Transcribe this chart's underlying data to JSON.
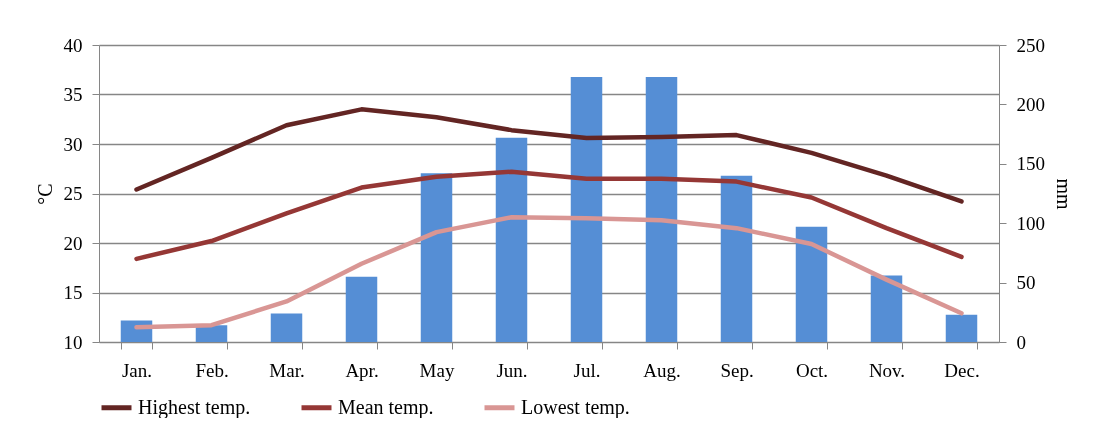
{
  "chart_data": {
    "type": "line",
    "categories": [
      "Jan.",
      "Feb.",
      "Mar.",
      "Apr.",
      "May",
      "Jun.",
      "Jul.",
      "Aug.",
      "Sep.",
      "Oct.",
      "Nov.",
      "Dec."
    ],
    "ylabel": "°C",
    "y2label": "mm",
    "ylim": [
      10,
      40
    ],
    "yticks": [
      10,
      15,
      20,
      25,
      30,
      35,
      40
    ],
    "y2lim": [
      0,
      250
    ],
    "y2ticks": [
      0,
      50,
      100,
      150,
      200,
      250
    ],
    "grid": "y",
    "legend": "bottom",
    "series": [
      {
        "type": "bar",
        "axis": "y2",
        "color": "#558ed5",
        "values": [
          18,
          14,
          24,
          55,
          142,
          172,
          223,
          223,
          140,
          97,
          56,
          23
        ]
      },
      {
        "name": "Highest temp.",
        "color": "#632523",
        "values": [
          25.4,
          28.6,
          31.9,
          33.5,
          32.7,
          31.4,
          30.6,
          30.7,
          30.9,
          29.1,
          26.8,
          24.2
        ]
      },
      {
        "name": "Mean temp.",
        "color": "#953735",
        "values": [
          18.4,
          20.2,
          23.0,
          25.6,
          26.7,
          27.2,
          26.5,
          26.5,
          26.2,
          24.6,
          21.5,
          18.6
        ]
      },
      {
        "name": "Lowest temp.",
        "color": "#d99694",
        "values": [
          11.5,
          11.7,
          14.1,
          17.9,
          21.1,
          22.6,
          22.5,
          22.3,
          21.5,
          19.9,
          16.3,
          12.9
        ]
      }
    ]
  }
}
